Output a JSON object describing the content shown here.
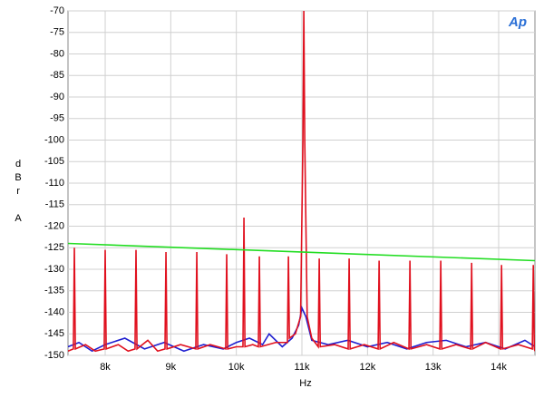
{
  "chart_data": {
    "type": "line",
    "logo": "Ap",
    "xlabel": "Hz",
    "ylabel": "dBr A",
    "xlim": [
      7433,
      14553
    ],
    "ylim": [
      -150,
      -70
    ],
    "xticks": [
      {
        "value": 8000,
        "label": "8k"
      },
      {
        "value": 9000,
        "label": "9k"
      },
      {
        "value": 10000,
        "label": "10k"
      },
      {
        "value": 11000,
        "label": "11k"
      },
      {
        "value": 12000,
        "label": "12k"
      },
      {
        "value": 13000,
        "label": "13k"
      },
      {
        "value": 14000,
        "label": "14k"
      }
    ],
    "yticks": [
      -70,
      -75,
      -80,
      -85,
      -90,
      -95,
      -100,
      -105,
      -110,
      -115,
      -120,
      -125,
      -130,
      -135,
      -140,
      -145,
      -150
    ],
    "grid": true,
    "series": [
      {
        "color": "#1f1fd0",
        "x": [
          7433,
          7600,
          7800,
          8000,
          8300,
          8600,
          8900,
          9200,
          9500,
          9800,
          10000,
          10200,
          10400,
          10500,
          10700,
          10850,
          10950,
          11000,
          11060,
          11150,
          11400,
          11700,
          12000,
          12300,
          12600,
          12900,
          13200,
          13500,
          13800,
          14100,
          14400,
          14553
        ],
        "values": [
          -148,
          -147,
          -149,
          -147.5,
          -146,
          -148.5,
          -147,
          -149,
          -147.5,
          -148.5,
          -147,
          -146,
          -147.5,
          -145,
          -148,
          -146,
          -143,
          -139,
          -141,
          -146.5,
          -147.5,
          -146.5,
          -148,
          -147,
          -148.5,
          -147,
          -146.5,
          -148,
          -147,
          -148.5,
          -146.5,
          -148
        ]
      },
      {
        "color": "#e0101e",
        "x": [
          7433,
          7515,
          7530,
          7545,
          7700,
          7850,
          7985,
          8000,
          8015,
          8200,
          8350,
          8455,
          8470,
          8485,
          8650,
          8800,
          8912,
          8927,
          8942,
          9150,
          9382,
          9397,
          9412,
          9600,
          9838,
          9853,
          9868,
          10000,
          10101,
          10116,
          10131,
          10250,
          10336,
          10351,
          10366,
          10600,
          10779,
          10794,
          10809,
          10900,
          10980,
          11015,
          11029,
          11043,
          11080,
          11150,
          11249,
          11264,
          11279,
          11500,
          11705,
          11720,
          11735,
          11950,
          12162,
          12177,
          12192,
          12400,
          12632,
          12647,
          12662,
          12900,
          13102,
          13117,
          13132,
          13350,
          13573,
          13588,
          13603,
          13800,
          14029,
          14044,
          14059,
          14300,
          14513,
          14528,
          14543,
          14553
        ],
        "values": [
          -149,
          -148.5,
          -125,
          -148.5,
          -147.5,
          -149,
          -148.5,
          -125.5,
          -148.5,
          -147.5,
          -149,
          -148.5,
          -125.5,
          -148.5,
          -146.5,
          -149,
          -148.5,
          -126,
          -148.5,
          -147.5,
          -148.5,
          -126,
          -148.5,
          -147.5,
          -148.5,
          -126.5,
          -148.5,
          -148,
          -148,
          -118,
          -148,
          -147.5,
          -148,
          -127,
          -148,
          -147,
          -147,
          -127,
          -146,
          -145,
          -141,
          -100,
          -70,
          -100,
          -141,
          -146,
          -148,
          -127.5,
          -148,
          -147.5,
          -148.5,
          -127.5,
          -148.5,
          -147.5,
          -148.5,
          -128,
          -148.5,
          -147,
          -148.5,
          -128,
          -148.5,
          -147.5,
          -148.5,
          -128,
          -148.5,
          -147.5,
          -148.5,
          -128.5,
          -148.5,
          -147,
          -148.5,
          -129,
          -148.5,
          -147.5,
          -148.5,
          -129,
          -148.5,
          -149
        ]
      },
      {
        "color": "#22dd22",
        "x": [
          7433,
          14553
        ],
        "values": [
          -124,
          -128
        ]
      }
    ]
  }
}
